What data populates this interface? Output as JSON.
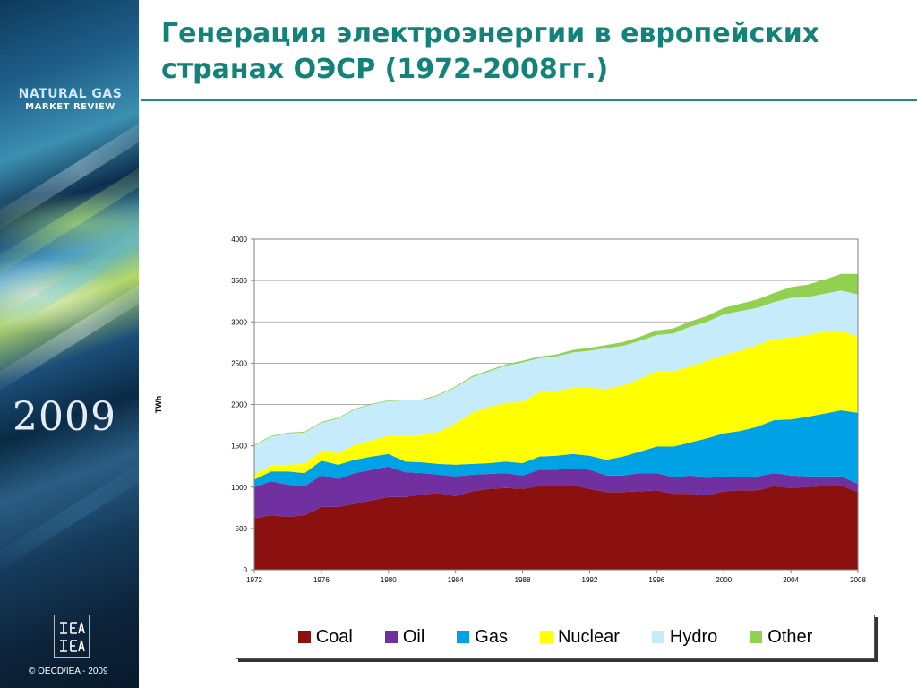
{
  "slide": {
    "title_line1": "Генерация электроэнергии в европейских",
    "title_line2": "странах ОЭСР (1972-2008гг.)",
    "brand_line1": "NATURAL GAS",
    "brand_line2": "MARKET REVIEW",
    "year": "2009",
    "copyright": "© OECD/IEA - 2009",
    "logo_text": "IEA"
  },
  "chart_data": {
    "type": "area",
    "stacked": true,
    "ylabel": "TWh",
    "ylim": [
      0,
      4000
    ],
    "yticks": [
      0,
      500,
      1000,
      1500,
      2000,
      2500,
      3000,
      3500,
      4000
    ],
    "xticks": [
      1972,
      1976,
      1980,
      1984,
      1988,
      1992,
      1996,
      2000,
      2004,
      2008
    ],
    "x": [
      1972,
      1973,
      1974,
      1975,
      1976,
      1977,
      1978,
      1979,
      1980,
      1981,
      1982,
      1983,
      1984,
      1985,
      1986,
      1987,
      1988,
      1989,
      1990,
      1991,
      1992,
      1993,
      1994,
      1995,
      1996,
      1997,
      1998,
      1999,
      2000,
      2001,
      2002,
      2003,
      2004,
      2005,
      2006,
      2007,
      2008
    ],
    "legend_position": "bottom",
    "grid": true,
    "series": [
      {
        "name": "Coal",
        "color": "#8b1010",
        "values": [
          620,
          660,
          640,
          660,
          760,
          760,
          800,
          840,
          880,
          880,
          910,
          930,
          890,
          950,
          980,
          990,
          980,
          1010,
          1010,
          1020,
          980,
          940,
          940,
          950,
          960,
          920,
          920,
          900,
          950,
          960,
          960,
          1010,
          990,
          1000,
          1010,
          1020,
          940
        ]
      },
      {
        "name": "Oil",
        "color": "#7030a0",
        "values": [
          380,
          410,
          390,
          350,
          380,
          340,
          370,
          370,
          370,
          300,
          260,
          220,
          240,
          200,
          180,
          180,
          160,
          200,
          200,
          210,
          230,
          200,
          200,
          220,
          210,
          200,
          220,
          210,
          180,
          160,
          170,
          160,
          150,
          130,
          120,
          110,
          100
        ]
      },
      {
        "name": "Gas",
        "color": "#00a2e6",
        "values": [
          90,
          120,
          160,
          160,
          180,
          170,
          160,
          160,
          150,
          130,
          130,
          130,
          140,
          130,
          130,
          140,
          150,
          160,
          170,
          170,
          170,
          190,
          230,
          260,
          320,
          370,
          400,
          480,
          520,
          560,
          600,
          640,
          680,
          720,
          760,
          800,
          860
        ]
      },
      {
        "name": "Nuclear",
        "color": "#ffff00",
        "values": [
          60,
          70,
          80,
          110,
          120,
          140,
          180,
          200,
          220,
          310,
          330,
          390,
          500,
          620,
          680,
          710,
          740,
          780,
          780,
          800,
          820,
          860,
          860,
          880,
          910,
          910,
          920,
          940,
          950,
          970,
          990,
          980,
          990,
          990,
          990,
          960,
          920
        ]
      },
      {
        "name": "Hydro",
        "color": "#c6ebfa",
        "values": [
          350,
          350,
          380,
          380,
          340,
          420,
          430,
          430,
          420,
          430,
          420,
          440,
          440,
          430,
          430,
          450,
          480,
          410,
          420,
          430,
          450,
          490,
          480,
          460,
          440,
          460,
          480,
          470,
          490,
          480,
          450,
          450,
          480,
          460,
          460,
          490,
          510
        ]
      },
      {
        "name": "Other",
        "color": "#92d050",
        "values": [
          10,
          10,
          10,
          10,
          10,
          10,
          10,
          10,
          10,
          10,
          10,
          10,
          10,
          15,
          15,
          15,
          20,
          20,
          25,
          30,
          35,
          40,
          45,
          50,
          55,
          60,
          65,
          70,
          80,
          90,
          100,
          110,
          130,
          150,
          170,
          200,
          250
        ]
      }
    ]
  }
}
